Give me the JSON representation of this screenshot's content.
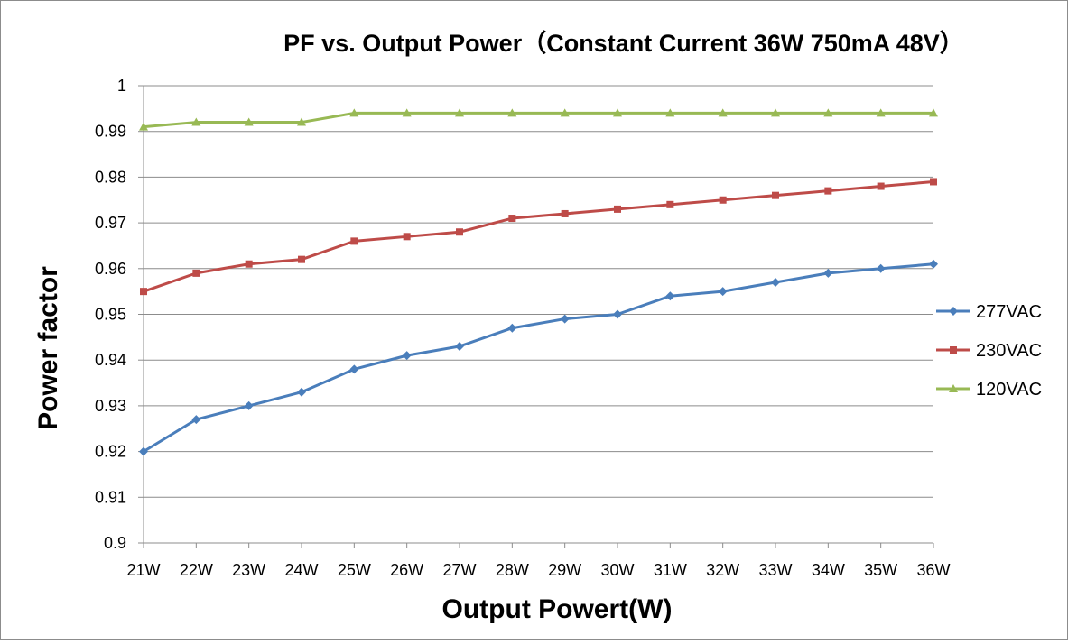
{
  "chart_data": {
    "type": "line",
    "title": "PF vs. Output Power（Constant Current 36W 750mA 48V）",
    "xlabel": "Output Powert(W)",
    "ylabel": "Power factor",
    "categories": [
      "21W",
      "22W",
      "23W",
      "24W",
      "25W",
      "26W",
      "27W",
      "28W",
      "29W",
      "30W",
      "31W",
      "32W",
      "33W",
      "34W",
      "35W",
      "36W"
    ],
    "ylim": [
      0.9,
      1
    ],
    "yticks": [
      "0.9",
      "0.91",
      "0.92",
      "0.93",
      "0.94",
      "0.95",
      "0.96",
      "0.97",
      "0.98",
      "0.99",
      "1"
    ],
    "grid": true,
    "legend_position": "right",
    "series": [
      {
        "name": "277VAC",
        "color": "#4a7ebb",
        "marker": "diamond",
        "values": [
          0.92,
          0.927,
          0.93,
          0.933,
          0.938,
          0.941,
          0.943,
          0.947,
          0.949,
          0.95,
          0.954,
          0.955,
          0.957,
          0.959,
          0.96,
          0.961
        ]
      },
      {
        "name": "230VAC",
        "color": "#be4b48",
        "marker": "square",
        "values": [
          0.955,
          0.959,
          0.961,
          0.962,
          0.966,
          0.967,
          0.968,
          0.971,
          0.972,
          0.973,
          0.974,
          0.975,
          0.976,
          0.977,
          0.978,
          0.979
        ]
      },
      {
        "name": "120VAC",
        "color": "#98b954",
        "marker": "triangle",
        "values": [
          0.991,
          0.992,
          0.992,
          0.992,
          0.994,
          0.994,
          0.994,
          0.994,
          0.994,
          0.994,
          0.994,
          0.994,
          0.994,
          0.994,
          0.994,
          0.994
        ]
      }
    ]
  }
}
